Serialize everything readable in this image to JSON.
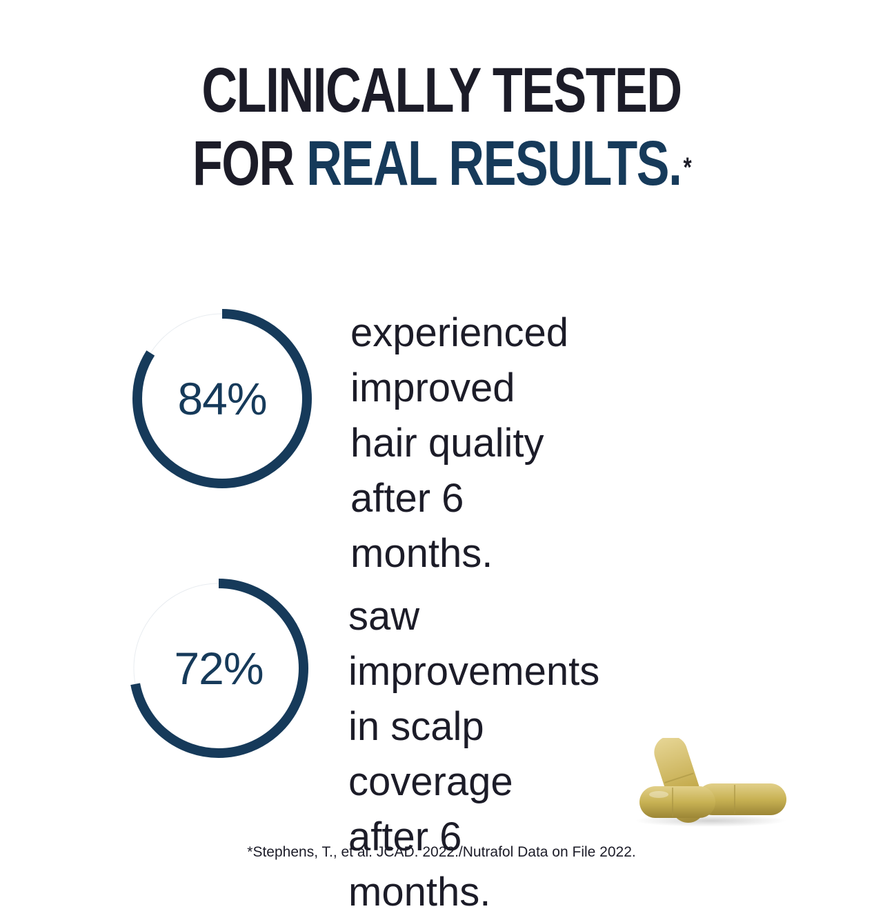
{
  "headline": {
    "line1": "CLINICALLY TESTED",
    "line2_prefix": "FOR ",
    "line2_accent": "REAL RESULTS.",
    "asterisk": "*"
  },
  "stats": [
    {
      "value": "84%",
      "fraction": 0.84,
      "description": "experienced\nimproved hair quality\nafter 6 months."
    },
    {
      "value": "72%",
      "fraction": 0.72,
      "description": "saw improvements\nin scalp coverage\nafter 6 months."
    }
  ],
  "footnote": "*Stephens, T., et al. JCAD. 2022./Nutrafol Data on File 2022.",
  "colors": {
    "accent": "#163a5a",
    "text": "#1c1c28",
    "capsule": "#c9b356"
  },
  "icons": {
    "product_image": "capsules-icon"
  }
}
